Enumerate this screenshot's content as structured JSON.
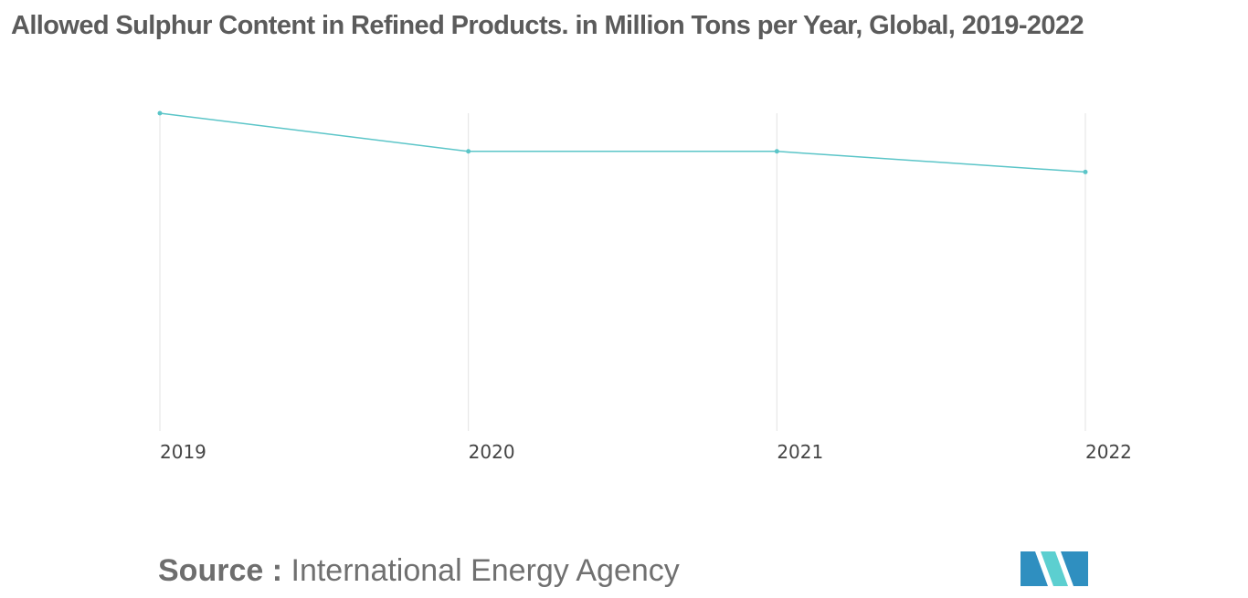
{
  "colors": {
    "series": "#5bc5c8",
    "grid": "#e3e3e3",
    "title": "#5b5b5b",
    "logo_dark": "#2f8fc0",
    "logo_light": "#5ccfd0"
  },
  "chart_data": {
    "type": "line",
    "title": "Allowed Sulphur Content in Refined Products. in Million Tons per Year, Global, 2019-2022",
    "xlabel": "",
    "ylabel": "",
    "categories": [
      "2019",
      "2020",
      "2021",
      "2022"
    ],
    "series": [
      {
        "name": "Allowed Sulphur Content",
        "values": [
          100,
          88,
          88,
          81.5
        ]
      }
    ],
    "ylim": [
      0,
      100
    ],
    "grid": "vertical",
    "legend": "none"
  },
  "source": {
    "label": "Source :",
    "value": "International Energy Agency"
  },
  "logo": {
    "icon": "mordor-logo-icon"
  }
}
